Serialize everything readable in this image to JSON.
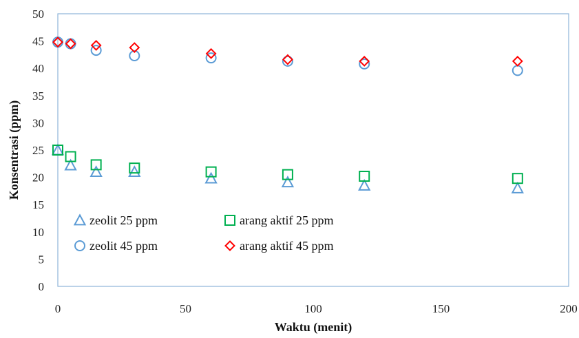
{
  "chart_data": {
    "type": "scatter",
    "xlabel": "Waktu (menit)",
    "ylabel": "Konsentrasi (ppm)",
    "xlim": [
      0,
      200
    ],
    "ylim": [
      0,
      50
    ],
    "x_ticks": [
      0,
      50,
      100,
      150,
      200
    ],
    "y_ticks": [
      0,
      5,
      10,
      15,
      20,
      25,
      30,
      35,
      40,
      45,
      50
    ],
    "grid": false,
    "legend_placement": "bottom-left inside plot",
    "series": [
      {
        "name": "zeolit 25 ppm",
        "marker": "triangle",
        "color": "#5b9bd5",
        "x": [
          0,
          5,
          15,
          30,
          60,
          90,
          120,
          180
        ],
        "y": [
          25.0,
          22.2,
          21.0,
          21.0,
          19.8,
          19.1,
          18.5,
          18.0
        ]
      },
      {
        "name": "arang aktif 25 ppm",
        "marker": "square",
        "color": "#00b050",
        "x": [
          0,
          5,
          15,
          30,
          60,
          90,
          120,
          180
        ],
        "y": [
          25.0,
          23.8,
          22.3,
          21.7,
          21.0,
          20.5,
          20.2,
          19.8
        ]
      },
      {
        "name": "zeolit 45 ppm",
        "marker": "circle",
        "color": "#5b9bd5",
        "x": [
          0,
          5,
          15,
          30,
          60,
          90,
          120,
          180
        ],
        "y": [
          44.8,
          44.5,
          43.3,
          42.3,
          41.9,
          41.3,
          40.8,
          39.6
        ]
      },
      {
        "name": "arang aktif 45 ppm",
        "marker": "diamond",
        "color": "#ff0000",
        "x": [
          0,
          5,
          15,
          30,
          60,
          90,
          120,
          180
        ],
        "y": [
          44.8,
          44.5,
          44.2,
          43.8,
          42.7,
          41.6,
          41.3,
          41.3
        ]
      }
    ]
  }
}
